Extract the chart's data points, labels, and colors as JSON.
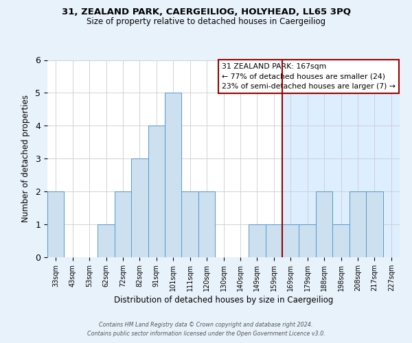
{
  "title_line1": "31, ZEALAND PARK, CAERGEILIOG, HOLYHEAD, LL65 3PQ",
  "title_line2": "Size of property relative to detached houses in Caergeiliog",
  "xlabel": "Distribution of detached houses by size in Caergeiliog",
  "ylabel": "Number of detached properties",
  "bins": [
    "33sqm",
    "43sqm",
    "53sqm",
    "62sqm",
    "72sqm",
    "82sqm",
    "91sqm",
    "101sqm",
    "111sqm",
    "120sqm",
    "130sqm",
    "140sqm",
    "149sqm",
    "159sqm",
    "169sqm",
    "179sqm",
    "188sqm",
    "198sqm",
    "208sqm",
    "217sqm",
    "227sqm"
  ],
  "values": [
    2,
    0,
    0,
    1,
    2,
    3,
    4,
    5,
    2,
    2,
    0,
    0,
    1,
    1,
    1,
    1,
    2,
    1,
    2,
    2,
    0
  ],
  "bar_color": "#cce0f0",
  "bar_edge_color": "#5599cc",
  "red_line_index": 14,
  "annotation_title": "31 ZEALAND PARK: 167sqm",
  "annotation_line2": "← 77% of detached houses are smaller (24)",
  "annotation_line3": "23% of semi-detached houses are larger (7) →",
  "annotation_box_edgecolor": "#990000",
  "ylim_max": 6,
  "yticks": [
    0,
    1,
    2,
    3,
    4,
    5,
    6
  ],
  "bg_left": "#ffffff",
  "bg_right": "#ddeeff",
  "bg_main": "#e8f2fa",
  "grid_color": "#cccccc",
  "footer_line1": "Contains HM Land Registry data © Crown copyright and database right 2024.",
  "footer_line2": "Contains public sector information licensed under the Open Government Licence v3.0."
}
